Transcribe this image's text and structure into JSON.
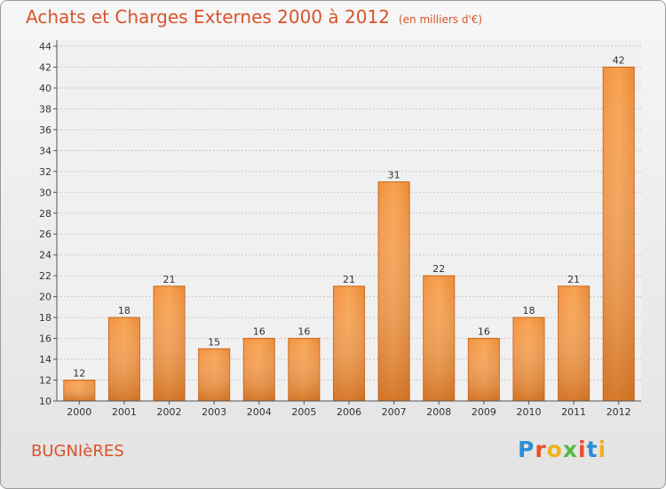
{
  "header": {
    "title": "Achats et Charges Externes 2000 à 2012",
    "unit": "(en milliers d'€)"
  },
  "footer": {
    "place": "BUGNIèRES",
    "logo": "Proxiti"
  },
  "colors": {
    "accent": "#d9532b",
    "bar_light": "#f7a04e",
    "bar_dark": "#d9701f"
  },
  "chart_data": {
    "type": "bar",
    "categories": [
      "2000",
      "2001",
      "2002",
      "2003",
      "2004",
      "2005",
      "2006",
      "2007",
      "2008",
      "2009",
      "2010",
      "2011",
      "2012"
    ],
    "values": [
      12,
      18,
      21,
      15,
      16,
      16,
      21,
      31,
      22,
      16,
      18,
      21,
      42
    ],
    "title": "Achats et Charges Externes 2000 à 2012",
    "ylim": [
      10,
      44
    ],
    "yticks": [
      10,
      12,
      14,
      16,
      18,
      20,
      22,
      24,
      26,
      28,
      30,
      32,
      34,
      36,
      38,
      40,
      42,
      44
    ],
    "grid": true
  }
}
